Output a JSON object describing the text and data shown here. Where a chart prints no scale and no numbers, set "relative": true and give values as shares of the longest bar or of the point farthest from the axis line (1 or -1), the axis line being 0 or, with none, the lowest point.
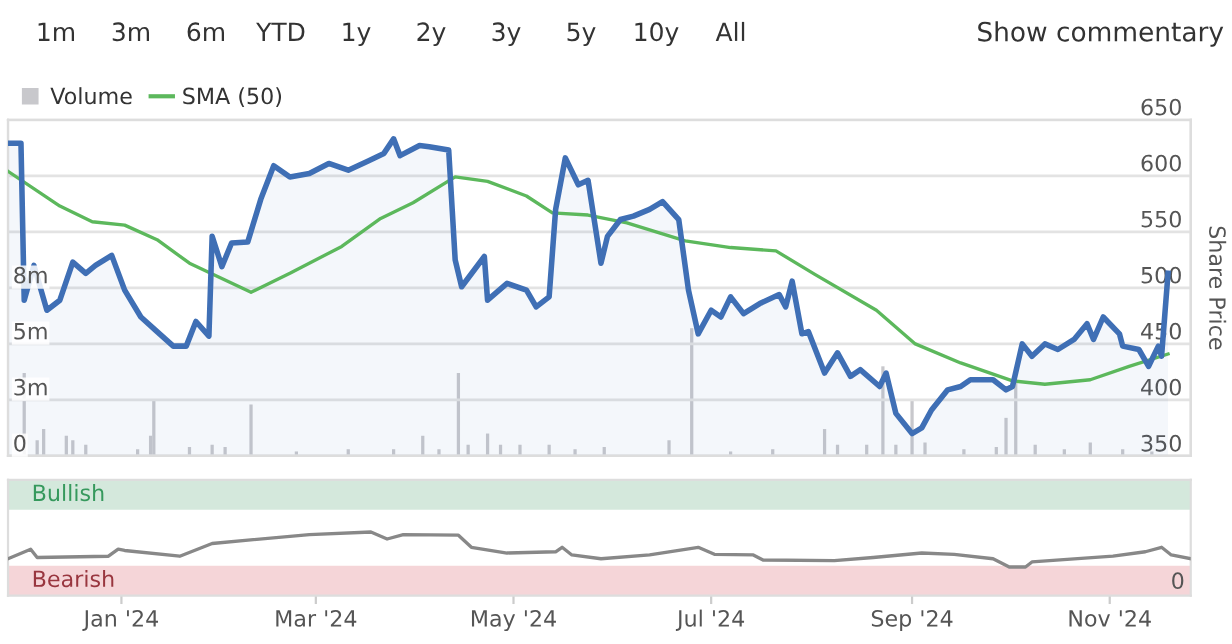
{
  "chart_data": [
    {
      "type": "line",
      "annotations": [
        "1m",
        "3m",
        "6m",
        "YTD",
        "1y",
        "2y",
        "3y",
        "5y",
        "10y",
        "All",
        "Show commentary"
      ],
      "y2label": "Share Price",
      "xlim": [
        "2023-11-27",
        "2024-11-26"
      ],
      "ylim": [
        0,
        15
      ],
      "yticks": [
        0,
        {
          "value": 2.5,
          "label": "3m"
        },
        {
          "value": 5,
          "label": "5m"
        },
        {
          "value": 7.5,
          "label": "8m"
        }
      ],
      "y2lim": [
        350,
        650
      ],
      "y2ticks": [
        350,
        400,
        450,
        500,
        550,
        600,
        650
      ],
      "tick_labels": "y",
      "grid": "y",
      "legend": "top left",
      "series": [
        {
          "name": "Volume",
          "type": "bar",
          "axis": "y",
          "color": "#c8c8cc",
          "x": [
            "2023-12-02",
            "2023-12-06",
            "2023-12-08",
            "2023-12-15",
            "2023-12-17",
            "2023-12-21",
            "2024-01-06",
            "2024-01-10",
            "2024-01-11",
            "2024-01-22",
            "2024-01-29",
            "2024-02-02",
            "2024-02-10",
            "2024-02-24",
            "2024-03-11",
            "2024-03-25",
            "2024-04-03",
            "2024-04-08",
            "2024-04-14",
            "2024-04-17",
            "2024-04-23",
            "2024-04-27",
            "2024-05-03",
            "2024-05-12",
            "2024-05-20",
            "2024-05-29",
            "2024-06-18",
            "2024-06-25",
            "2024-07-07",
            "2024-07-20",
            "2024-08-05",
            "2024-08-09",
            "2024-08-18",
            "2024-08-23",
            "2024-08-27",
            "2024-09-01",
            "2024-09-05",
            "2024-09-17",
            "2024-09-27",
            "2024-09-30",
            "2024-10-03",
            "2024-10-09",
            "2024-10-18",
            "2024-10-26",
            "2024-11-05",
            "2024-11-14"
          ],
          "values": [
            3.7,
            0.7,
            1.2,
            0.9,
            0.7,
            0.5,
            0.3,
            0.9,
            2.5,
            0.4,
            0.5,
            0.4,
            2.3,
            0.2,
            0.3,
            0.3,
            0.9,
            0.3,
            3.7,
            0.5,
            1.0,
            0.5,
            0.5,
            0.5,
            0.3,
            0.4,
            0.7,
            5.7,
            0.2,
            0.3,
            1.2,
            0.5,
            0.5,
            4.0,
            0.5,
            2.5,
            0.6,
            0.3,
            0.4,
            1.7,
            3.4,
            0.5,
            0.3,
            0.6,
            0.3,
            0.2
          ]
        },
        {
          "type": "area",
          "axis": "y2",
          "color": "#3f6fb5",
          "x": [
            "2023-11-27",
            "2023-12-01",
            "2023-12-02",
            "2023-12-05",
            "2023-12-09",
            "2023-12-13",
            "2023-12-17",
            "2023-12-21",
            "2023-12-24",
            "2023-12-29",
            "2024-01-02",
            "2024-01-07",
            "2024-01-12",
            "2024-01-17",
            "2024-01-21",
            "2024-01-24",
            "2024-01-28",
            "2024-01-29",
            "2024-02-01",
            "2024-02-04",
            "2024-02-09",
            "2024-02-13",
            "2024-02-17",
            "2024-02-22",
            "2024-02-28",
            "2024-03-05",
            "2024-03-11",
            "2024-03-17",
            "2024-03-22",
            "2024-03-25",
            "2024-03-27",
            "2024-04-02",
            "2024-04-05",
            "2024-04-11",
            "2024-04-13",
            "2024-04-15",
            "2024-04-22",
            "2024-04-23",
            "2024-04-29",
            "2024-05-05",
            "2024-05-08",
            "2024-05-12",
            "2024-05-14",
            "2024-05-17",
            "2024-05-21",
            "2024-05-24",
            "2024-05-28",
            "2024-05-30",
            "2024-06-03",
            "2024-06-07",
            "2024-06-12",
            "2024-06-16",
            "2024-06-21",
            "2024-06-24",
            "2024-06-27",
            "2024-07-01",
            "2024-07-04",
            "2024-07-07",
            "2024-07-11",
            "2024-07-16",
            "2024-07-22",
            "2024-07-24",
            "2024-07-26",
            "2024-07-29",
            "2024-07-31",
            "2024-08-05",
            "2024-08-09",
            "2024-08-13",
            "2024-08-16",
            "2024-08-22",
            "2024-08-24",
            "2024-08-27",
            "2024-09-01",
            "2024-09-04",
            "2024-09-07",
            "2024-09-12",
            "2024-09-16",
            "2024-09-19",
            "2024-09-26",
            "2024-09-30",
            "2024-10-02",
            "2024-10-05",
            "2024-10-08",
            "2024-10-12",
            "2024-10-16",
            "2024-10-21",
            "2024-10-25",
            "2024-10-27",
            "2024-10-30",
            "2024-11-04",
            "2024-11-05",
            "2024-11-10",
            "2024-11-13",
            "2024-11-16",
            "2024-11-17",
            "2024-11-19"
          ],
          "values": [
            629,
            629,
            489,
            520,
            480,
            489,
            523,
            513,
            520,
            529,
            498,
            474,
            461,
            448,
            448,
            470,
            457,
            546,
            519,
            540,
            541,
            579,
            609,
            599,
            602,
            611,
            605,
            613,
            620,
            633,
            618,
            627,
            626,
            623,
            525,
            501,
            528,
            489,
            504,
            498,
            483,
            492,
            570,
            616,
            592,
            596,
            522,
            546,
            561,
            564,
            570,
            577,
            561,
            498,
            459,
            480,
            474,
            492,
            477,
            486,
            494,
            483,
            506,
            459,
            461,
            424,
            442,
            421,
            427,
            412,
            424,
            388,
            370,
            375,
            391,
            409,
            412,
            418,
            418,
            409,
            412,
            450,
            439,
            450,
            445,
            454,
            468,
            454,
            474,
            459,
            448,
            445,
            430,
            448,
            439,
            513
          ]
        },
        {
          "name": "SMA (50)",
          "axis": "y2",
          "color": "#5cb85c",
          "x": [
            "2023-11-27",
            "2023-12-13",
            "2023-12-23",
            "2024-01-02",
            "2024-01-12",
            "2024-01-22",
            "2024-02-10",
            "2024-02-22",
            "2024-03-09",
            "2024-03-21",
            "2024-03-31",
            "2024-04-13",
            "2024-04-23",
            "2024-05-05",
            "2024-05-13",
            "2024-05-24",
            "2024-06-05",
            "2024-06-23",
            "2024-07-07",
            "2024-07-21",
            "2024-08-02",
            "2024-08-21",
            "2024-09-02",
            "2024-09-16",
            "2024-10-02",
            "2024-10-12",
            "2024-10-26",
            "2024-11-07",
            "2024-11-19"
          ],
          "values": [
            604,
            573,
            559,
            556,
            543,
            522,
            496,
            513,
            537,
            562,
            576,
            599,
            595,
            582,
            567,
            565,
            558,
            542,
            536,
            533,
            512,
            480,
            450,
            433,
            417,
            414,
            418,
            430,
            441
          ]
        }
      ]
    },
    {
      "type": "line",
      "xlim": [
        "2023-11-27",
        "2024-11-26"
      ],
      "xticks": [
        {
          "value": "2024-01-01",
          "label": "Jan '24"
        },
        {
          "value": "2024-03-01",
          "label": "Mar '24"
        },
        {
          "value": "2024-05-01",
          "label": "May '24"
        },
        {
          "value": "2024-07-01",
          "label": "Jul '24"
        },
        {
          "value": "2024-09-01",
          "label": "Sep '24"
        },
        {
          "value": "2024-11-01",
          "label": "Nov '24"
        }
      ],
      "relative": true,
      "annotations": [
        "0"
      ],
      "bands": [
        {
          "axis": "y",
          "from": 1.35,
          "to": 1.82,
          "label": "Bullish",
          "color": "#d4e8dc"
        },
        {
          "axis": "y",
          "from": 0,
          "to": 0.47,
          "label": "Bearish",
          "color": "#f5d5d8"
        }
      ],
      "series": [
        {
          "color": "#888888",
          "x": [
            "2023-11-27",
            "2023-12-04",
            "2023-12-06",
            "2023-12-28",
            "2023-12-31",
            "2024-01-02",
            "2024-01-19",
            "2024-01-29",
            "2024-02-28",
            "2024-03-18",
            "2024-03-23",
            "2024-03-28",
            "2024-04-14",
            "2024-04-18",
            "2024-04-29",
            "2024-05-14",
            "2024-05-16",
            "2024-05-19",
            "2024-05-28",
            "2024-06-12",
            "2024-06-27",
            "2024-07-02",
            "2024-07-14",
            "2024-07-17",
            "2024-08-08",
            "2024-08-20",
            "2024-09-04",
            "2024-09-14",
            "2024-09-26",
            "2024-10-01",
            "2024-10-06",
            "2024-10-08",
            "2024-11-02",
            "2024-11-12",
            "2024-11-17",
            "2024-11-20",
            "2024-11-26"
          ],
          "values": [
            0.58,
            0.73,
            0.6,
            0.62,
            0.73,
            0.71,
            0.62,
            0.82,
            0.96,
            1,
            0.89,
            0.96,
            0.95,
            0.76,
            0.67,
            0.69,
            0.76,
            0.64,
            0.58,
            0.64,
            0.76,
            0.65,
            0.64,
            0.56,
            0.55,
            0.6,
            0.67,
            0.65,
            0.58,
            0.45,
            0.45,
            0.53,
            0.62,
            0.69,
            0.76,
            0.64,
            0.58
          ]
        }
      ]
    }
  ]
}
